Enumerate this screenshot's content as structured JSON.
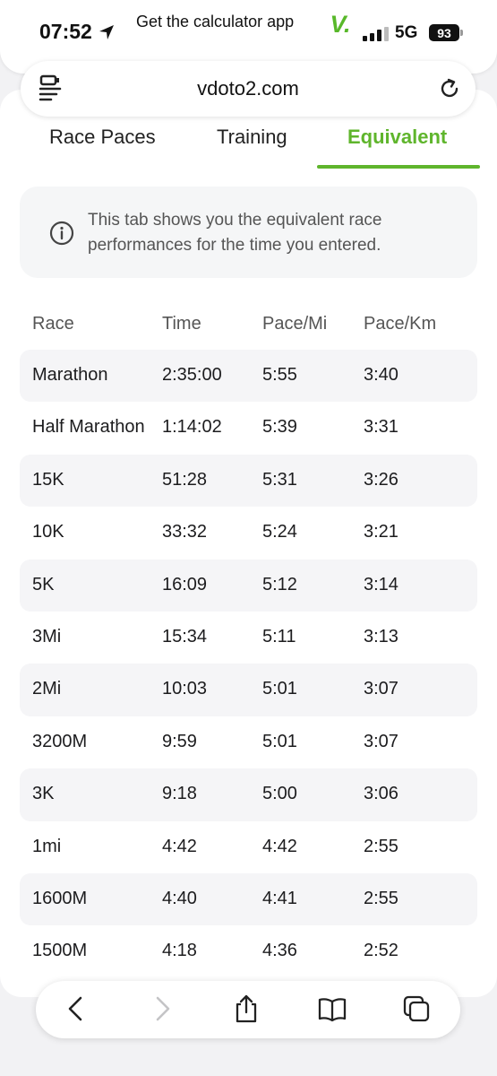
{
  "status_bar": {
    "time": "07:52",
    "banner": "Get the calculator app",
    "app_logo": "V.",
    "network": "5G",
    "battery": "93"
  },
  "browser": {
    "url": "vdoto2.com"
  },
  "tabs": [
    {
      "label": "Race Paces",
      "active": false
    },
    {
      "label": "Training",
      "active": false
    },
    {
      "label": "Equivalent",
      "active": true
    }
  ],
  "info": {
    "text": "This tab shows you the equivalent race performances for the time you entered."
  },
  "table": {
    "headers": [
      "Race",
      "Time",
      "Pace/Mi",
      "Pace/Km"
    ],
    "rows": [
      {
        "race": "Marathon",
        "time": "2:35:00",
        "pace_mi": "5:55",
        "pace_km": "3:40"
      },
      {
        "race": "Half Marathon",
        "time": "1:14:02",
        "pace_mi": "5:39",
        "pace_km": "3:31"
      },
      {
        "race": "15K",
        "time": "51:28",
        "pace_mi": "5:31",
        "pace_km": "3:26"
      },
      {
        "race": "10K",
        "time": "33:32",
        "pace_mi": "5:24",
        "pace_km": "3:21"
      },
      {
        "race": "5K",
        "time": "16:09",
        "pace_mi": "5:12",
        "pace_km": "3:14"
      },
      {
        "race": "3Mi",
        "time": "15:34",
        "pace_mi": "5:11",
        "pace_km": "3:13"
      },
      {
        "race": "2Mi",
        "time": "10:03",
        "pace_mi": "5:01",
        "pace_km": "3:07"
      },
      {
        "race": "3200M",
        "time": "9:59",
        "pace_mi": "5:01",
        "pace_km": "3:07"
      },
      {
        "race": "3K",
        "time": "9:18",
        "pace_mi": "5:00",
        "pace_km": "3:06"
      },
      {
        "race": "1mi",
        "time": "4:42",
        "pace_mi": "4:42",
        "pace_km": "2:55"
      },
      {
        "race": "1600M",
        "time": "4:40",
        "pace_mi": "4:41",
        "pace_km": "2:55"
      },
      {
        "race": "1500M",
        "time": "4:18",
        "pace_mi": "4:36",
        "pace_km": "2:52"
      }
    ]
  },
  "icons": {
    "location": "location-arrow-icon",
    "menu": "site-menu-icon",
    "reload": "reload-icon",
    "info": "info-icon",
    "back": "back-icon",
    "forward": "forward-icon",
    "share": "share-icon",
    "bookmarks": "bookmarks-icon",
    "tabs": "tabs-icon"
  },
  "colors": {
    "accent": "#5fb52c",
    "row_shade": "#f5f5f7"
  }
}
